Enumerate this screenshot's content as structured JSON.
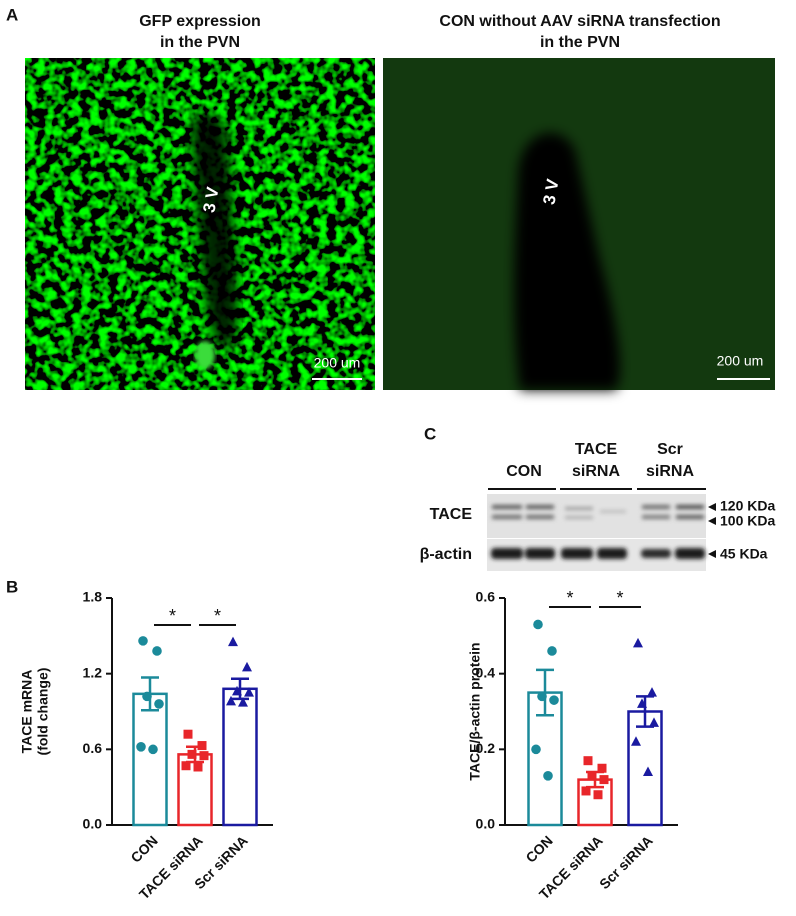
{
  "panel_labels": [
    "A",
    "B",
    "C"
  ],
  "images": [
    {
      "title": [
        "GFP expression",
        "in the PVN"
      ],
      "label": "3 V",
      "scale_bar": "200 um"
    },
    {
      "title": [
        "CON without AAV siRNA transfection",
        "in the PVN"
      ],
      "label": "3 V",
      "scale_bar": "200 um"
    }
  ],
  "blot": {
    "groups": [
      [
        "CON"
      ],
      [
        "TACE",
        "siRNA"
      ],
      [
        "Scr",
        "siRNA"
      ]
    ],
    "rows": [
      "TACE",
      "β-actin"
    ],
    "markers": [
      "120 KDa",
      "100 KDa",
      "45 KDa"
    ]
  },
  "chart_data": [
    {
      "type": "bar",
      "y_label": [
        "TACE mRNA",
        "(fold change)"
      ],
      "categories": [
        "CON",
        "TACE siRNA",
        "Scr siRNA"
      ],
      "values": [
        1.04,
        0.56,
        1.08
      ],
      "errors": [
        0.13,
        0.06,
        0.08
      ],
      "points": [
        [
          1.46,
          1.38,
          1.02,
          0.96,
          0.62,
          0.6
        ],
        [
          0.72,
          0.63,
          0.56,
          0.55,
          0.47,
          0.46
        ],
        [
          1.45,
          1.25,
          1.06,
          1.05,
          0.98,
          0.97
        ]
      ],
      "colors": [
        "#1b8a9a",
        "#e8262a",
        "#1a1aa0"
      ],
      "markers": [
        "circle",
        "square",
        "triangle"
      ],
      "ylim": [
        0,
        1.8
      ],
      "yticks": [
        {
          "value": 0,
          "label": "0.0"
        },
        0.6,
        1.2,
        1.8
      ],
      "significance": [
        {
          "pair": [
            0,
            1
          ],
          "label": "*"
        },
        {
          "pair": [
            1,
            2
          ],
          "label": "*"
        }
      ]
    },
    {
      "type": "bar",
      "y_label": [
        "TACE/β-actin protein"
      ],
      "categories": [
        "CON",
        "TACE siRNA",
        "Scr siRNA"
      ],
      "values": [
        0.35,
        0.12,
        0.3
      ],
      "errors": [
        0.06,
        0.02,
        0.04
      ],
      "points": [
        [
          0.53,
          0.46,
          0.34,
          0.33,
          0.2,
          0.13
        ],
        [
          0.17,
          0.15,
          0.13,
          0.12,
          0.09,
          0.08
        ],
        [
          0.48,
          0.35,
          0.32,
          0.27,
          0.22,
          0.14
        ]
      ],
      "colors": [
        "#1b8a9a",
        "#e8262a",
        "#1a1aa0"
      ],
      "markers": [
        "circle",
        "square",
        "triangle"
      ],
      "ylim": [
        0,
        0.6
      ],
      "yticks": [
        {
          "value": 0,
          "label": "0.0"
        },
        0.2,
        0.4,
        0.6
      ],
      "significance": [
        {
          "pair": [
            0,
            1
          ],
          "label": "*"
        },
        {
          "pair": [
            1,
            2
          ],
          "label": "*"
        }
      ]
    }
  ]
}
